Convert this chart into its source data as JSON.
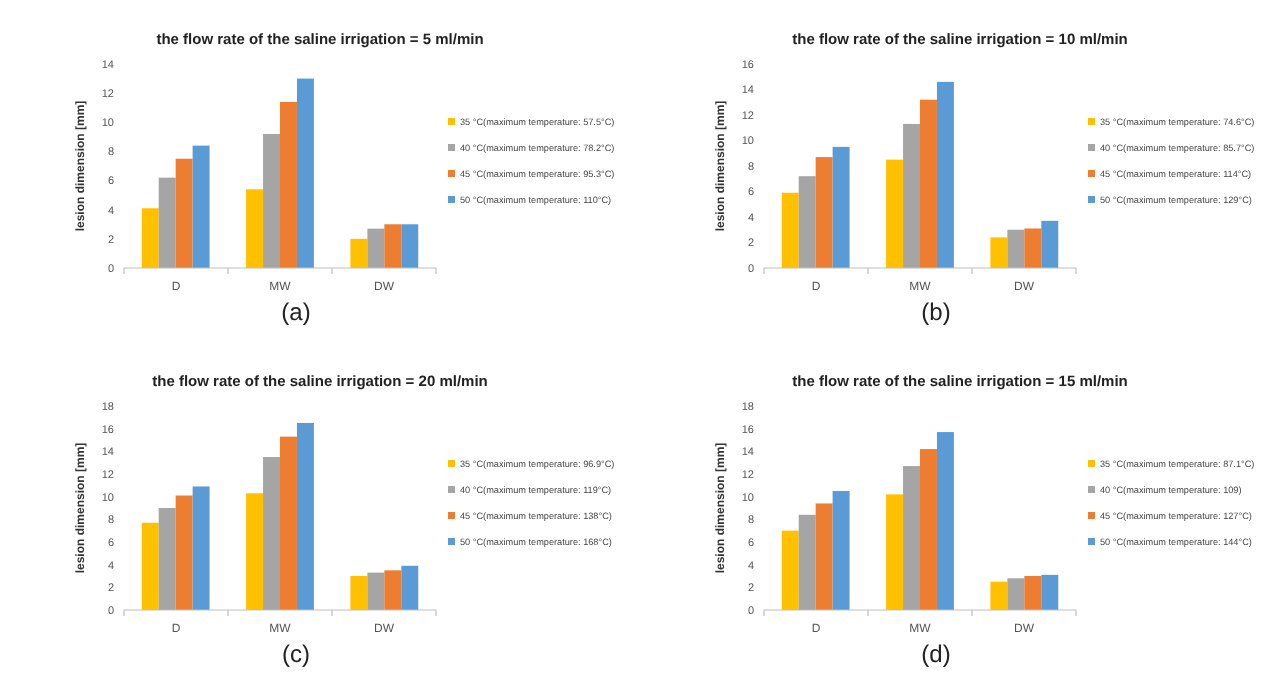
{
  "chart_data": [
    {
      "type": "bar",
      "title": "the flow rate of the saline irrigation = 5 ml/min",
      "ylabel": "lesion dimension [mm]",
      "categories": [
        "D",
        "MW",
        "DW"
      ],
      "ylim": [
        0,
        14
      ],
      "yticks": [
        0,
        2,
        4,
        6,
        8,
        10,
        12,
        14
      ],
      "legend": "right",
      "annotations": [
        "(a)"
      ],
      "series": [
        {
          "name": "35 °C(maximum temperature: 57.5°C)",
          "color": "#ffc000",
          "values": [
            4.1,
            5.4,
            2.0
          ]
        },
        {
          "name": "40 °C(maximum temperature: 78.2°C)",
          "color": "#a5a5a5",
          "values": [
            6.2,
            9.2,
            2.7
          ]
        },
        {
          "name": "45 °C(maximum temperature: 95.3°C)",
          "color": "#ed7d31",
          "values": [
            7.5,
            11.4,
            3.0
          ]
        },
        {
          "name": "50 °C(maximum temperature: 110°C)",
          "color": "#5b9bd5",
          "values": [
            8.4,
            13.0,
            3.0
          ]
        }
      ]
    },
    {
      "type": "bar",
      "title": "the flow rate of the saline irrigation = 10 ml/min",
      "ylabel": "lesion dimension [mm]",
      "categories": [
        "D",
        "MW",
        "DW"
      ],
      "ylim": [
        0,
        16
      ],
      "yticks": [
        0,
        2,
        4,
        6,
        8,
        10,
        12,
        14,
        16
      ],
      "legend": "right",
      "annotations": [
        "(b)"
      ],
      "series": [
        {
          "name": "35 °C(maximum temperature: 74.6°C)",
          "color": "#ffc000",
          "values": [
            5.9,
            8.5,
            2.4
          ]
        },
        {
          "name": "40 °C(maximum temperature: 85.7°C)",
          "color": "#a5a5a5",
          "values": [
            7.2,
            11.3,
            3.0
          ]
        },
        {
          "name": "45 °C(maximum temperature: 114°C)",
          "color": "#ed7d31",
          "values": [
            8.7,
            13.2,
            3.1
          ]
        },
        {
          "name": "50 °C(maximum temperature: 129°C)",
          "color": "#5b9bd5",
          "values": [
            9.5,
            14.6,
            3.7
          ]
        }
      ]
    },
    {
      "type": "bar",
      "title": "the flow rate of the saline irrigation = 20 ml/min",
      "ylabel": "lesion dimension [mm]",
      "categories": [
        "D",
        "MW",
        "DW"
      ],
      "ylim": [
        0,
        18
      ],
      "yticks": [
        0,
        2,
        4,
        6,
        8,
        10,
        12,
        14,
        16,
        18
      ],
      "legend": "right",
      "annotations": [
        "(c)"
      ],
      "series": [
        {
          "name": "35 °C(maximum temperature: 96.9°C)",
          "color": "#ffc000",
          "values": [
            7.7,
            10.3,
            3.0
          ]
        },
        {
          "name": "40 °C(maximum temperature: 119°C)",
          "color": "#a5a5a5",
          "values": [
            9.0,
            13.5,
            3.3
          ]
        },
        {
          "name": "45 °C(maximum temperature: 138°C)",
          "color": "#ed7d31",
          "values": [
            10.1,
            15.3,
            3.5
          ]
        },
        {
          "name": "50 °C(maximum temperature: 168°C)",
          "color": "#5b9bd5",
          "values": [
            10.9,
            16.5,
            3.9
          ]
        }
      ]
    },
    {
      "type": "bar",
      "title": "the flow rate of the saline irrigation = 15 ml/min",
      "ylabel": "lesion dimension [mm]",
      "categories": [
        "D",
        "MW",
        "DW"
      ],
      "ylim": [
        0,
        18
      ],
      "yticks": [
        0,
        2,
        4,
        6,
        8,
        10,
        12,
        14,
        16,
        18
      ],
      "legend": "right",
      "annotations": [
        "(d)"
      ],
      "series": [
        {
          "name": "35 °C(maximum temperature: 87.1°C)",
          "color": "#ffc000",
          "values": [
            7.0,
            10.2,
            2.5
          ]
        },
        {
          "name": "40 °C(maximum temperature: 109)",
          "color": "#a5a5a5",
          "values": [
            8.4,
            12.7,
            2.8
          ]
        },
        {
          "name": "45 °C(maximum temperature: 127°C)",
          "color": "#ed7d31",
          "values": [
            9.4,
            14.2,
            3.0
          ]
        },
        {
          "name": "50 °C(maximum temperature: 144°C)",
          "color": "#5b9bd5",
          "values": [
            10.5,
            15.7,
            3.1
          ]
        }
      ]
    }
  ]
}
